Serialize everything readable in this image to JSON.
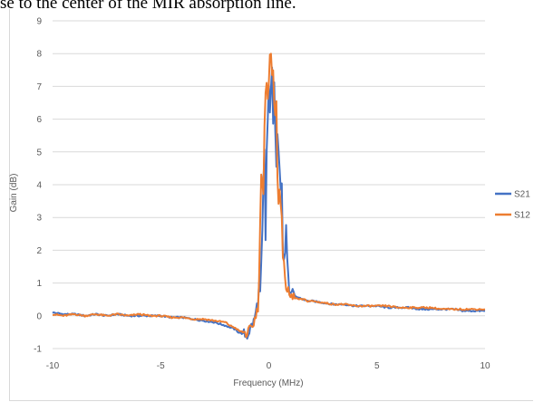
{
  "caption_text": "se to the center of the MIR absorption line.",
  "chart_data": {
    "type": "line",
    "title": "",
    "xlabel": "Frequency (MHz)",
    "ylabel": "Gain (dB)",
    "xlim": [
      -10,
      10
    ],
    "ylim": [
      -1,
      9
    ],
    "x_ticks": [
      -10,
      -5,
      0,
      5,
      10
    ],
    "y_ticks": [
      -1,
      0,
      1,
      2,
      3,
      4,
      5,
      6,
      7,
      8,
      9
    ],
    "grid": "horizontal",
    "legend_placement": "right",
    "series": [
      {
        "name": "S21",
        "color": "#4472c4",
        "x": [
          -10,
          -9.5,
          -9,
          -8.5,
          -8,
          -7.5,
          -7,
          -6.5,
          -6,
          -5.5,
          -5,
          -4.5,
          -4,
          -3.5,
          -3,
          -2.5,
          -2,
          -1.8,
          -1.6,
          -1.4,
          -1.2,
          -1.0,
          -0.8,
          -0.7,
          -0.6,
          -0.5,
          -0.45,
          -0.4,
          -0.35,
          -0.3,
          -0.25,
          -0.2,
          -0.15,
          -0.1,
          -0.05,
          0,
          0.05,
          0.1,
          0.15,
          0.2,
          0.25,
          0.3,
          0.35,
          0.4,
          0.45,
          0.5,
          0.55,
          0.6,
          0.65,
          0.7,
          0.75,
          0.8,
          0.85,
          0.9,
          0.95,
          1.0,
          1.1,
          1.2,
          1.4,
          1.6,
          1.8,
          2,
          2.5,
          3,
          3.5,
          4,
          4.5,
          5,
          5.5,
          6,
          6.5,
          7,
          7.5,
          8,
          8.5,
          9,
          9.5,
          10
        ],
        "y": [
          0.1,
          0.05,
          0.05,
          0.0,
          0.05,
          0.0,
          0.05,
          0.0,
          0.0,
          0.0,
          0.0,
          -0.05,
          -0.05,
          -0.1,
          -0.15,
          -0.2,
          -0.3,
          -0.35,
          -0.4,
          -0.5,
          -0.55,
          -0.6,
          -0.3,
          -0.2,
          0.1,
          0.5,
          0.9,
          0.7,
          1.5,
          2.5,
          4.0,
          5.0,
          2.2,
          5.0,
          6.0,
          7.0,
          6.2,
          6.8,
          7.5,
          6.0,
          7.2,
          5.5,
          4.5,
          5.4,
          5.2,
          4.6,
          4.0,
          4.2,
          2.0,
          1.7,
          1.9,
          2.8,
          1.8,
          1.1,
          0.8,
          0.6,
          0.65,
          0.6,
          0.55,
          0.5,
          0.45,
          0.45,
          0.4,
          0.35,
          0.35,
          0.3,
          0.3,
          0.3,
          0.25,
          0.25,
          0.25,
          0.2,
          0.2,
          0.2,
          0.2,
          0.15,
          0.15,
          0.15
        ]
      },
      {
        "name": "S12",
        "color": "#ed7d31",
        "x": [
          -10,
          -9.5,
          -9,
          -8.5,
          -8,
          -7.5,
          -7,
          -6.5,
          -6,
          -5.5,
          -5,
          -4.5,
          -4,
          -3.5,
          -3,
          -2.5,
          -2,
          -1.8,
          -1.6,
          -1.4,
          -1.2,
          -1.0,
          -0.8,
          -0.7,
          -0.6,
          -0.5,
          -0.45,
          -0.4,
          -0.35,
          -0.3,
          -0.25,
          -0.2,
          -0.15,
          -0.1,
          -0.05,
          0,
          0.05,
          0.1,
          0.15,
          0.2,
          0.25,
          0.3,
          0.35,
          0.4,
          0.45,
          0.5,
          0.55,
          0.6,
          0.65,
          0.7,
          0.75,
          0.8,
          0.85,
          0.9,
          0.95,
          1.0,
          1.1,
          1.2,
          1.4,
          1.6,
          1.8,
          2,
          2.5,
          3,
          3.5,
          4,
          4.5,
          5,
          5.5,
          6,
          6.5,
          7,
          7.5,
          8,
          8.5,
          9,
          9.5,
          10
        ],
        "y": [
          0.05,
          0.0,
          0.05,
          0.0,
          0.05,
          0.0,
          0.05,
          0.0,
          0.05,
          0.0,
          0.0,
          -0.05,
          -0.05,
          -0.1,
          -0.1,
          -0.15,
          -0.2,
          -0.3,
          -0.35,
          -0.45,
          -0.5,
          -0.55,
          -0.4,
          -0.2,
          0.0,
          0.3,
          1.0,
          3.0,
          4.2,
          4.2,
          3.8,
          5.8,
          6.8,
          7.0,
          6.5,
          7.0,
          7.8,
          8.1,
          7.5,
          7.6,
          6.5,
          6.0,
          6.5,
          4.2,
          3.5,
          4.0,
          3.5,
          3.0,
          1.6,
          1.5,
          1.3,
          0.9,
          0.8,
          0.7,
          0.6,
          0.6,
          0.55,
          0.55,
          0.5,
          0.5,
          0.45,
          0.45,
          0.4,
          0.35,
          0.35,
          0.3,
          0.3,
          0.3,
          0.3,
          0.25,
          0.25,
          0.25,
          0.25,
          0.2,
          0.2,
          0.2,
          0.2,
          0.2
        ]
      }
    ]
  }
}
